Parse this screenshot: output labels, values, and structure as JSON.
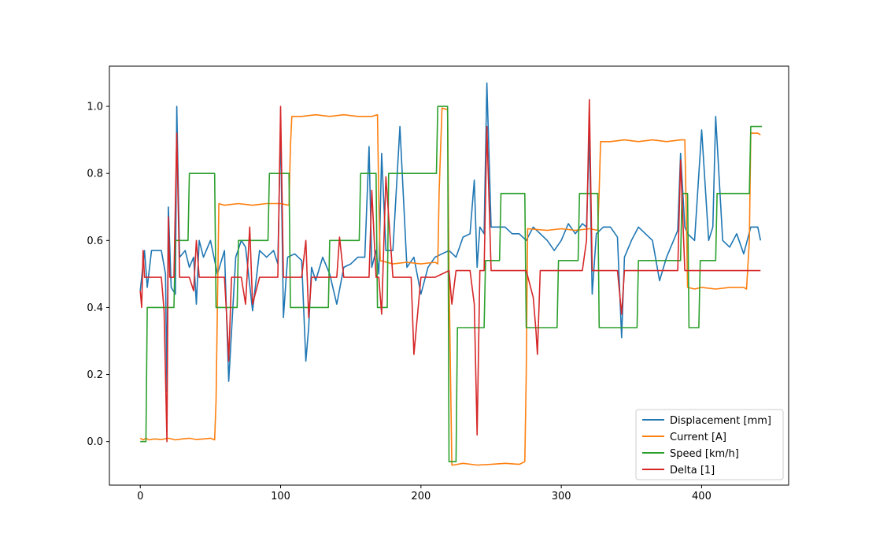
{
  "chart_data": {
    "type": "line",
    "title": "",
    "xlabel": "",
    "ylabel": "",
    "xlim": [
      -22,
      462
    ],
    "ylim": [
      -0.13,
      1.12
    ],
    "xticks": [
      0,
      100,
      200,
      300,
      400
    ],
    "yticks": [
      0.0,
      0.2,
      0.4,
      0.6,
      0.8,
      1.0
    ],
    "xtick_labels": [
      "0",
      "100",
      "200",
      "300",
      "400"
    ],
    "ytick_labels": [
      "0.0",
      "0.2",
      "0.4",
      "0.6",
      "0.8",
      "1.0"
    ],
    "grid": false,
    "legend_position": "bottom-right",
    "series": [
      {
        "name": "Displacement [mm]",
        "color": "#1f77b4",
        "x": [
          0,
          3,
          5,
          8,
          12,
          15,
          18,
          19,
          20,
          22,
          25,
          26,
          28,
          32,
          35,
          38,
          40,
          42,
          45,
          50,
          55,
          60,
          63,
          68,
          72,
          75,
          80,
          85,
          90,
          95,
          98,
          100,
          102,
          105,
          110,
          115,
          118,
          120,
          122,
          125,
          130,
          135,
          140,
          145,
          150,
          155,
          160,
          163,
          165,
          168,
          170,
          172,
          175,
          180,
          185,
          190,
          195,
          200,
          205,
          210,
          215,
          220,
          225,
          230,
          235,
          238,
          240,
          242,
          245,
          247,
          250,
          255,
          260,
          265,
          270,
          275,
          280,
          285,
          290,
          295,
          300,
          305,
          310,
          315,
          318,
          320,
          322,
          325,
          330,
          335,
          340,
          343,
          345,
          350,
          355,
          360,
          365,
          370,
          375,
          380,
          383,
          385,
          388,
          390,
          395,
          400,
          405,
          408,
          410,
          415,
          420,
          425,
          430,
          435,
          440,
          442
        ],
        "values": [
          0.45,
          0.57,
          0.46,
          0.57,
          0.57,
          0.57,
          0.5,
          0.15,
          0.7,
          0.46,
          0.44,
          1.0,
          0.55,
          0.57,
          0.52,
          0.55,
          0.41,
          0.6,
          0.55,
          0.6,
          0.5,
          0.57,
          0.18,
          0.55,
          0.6,
          0.58,
          0.39,
          0.57,
          0.55,
          0.57,
          0.53,
          0.94,
          0.37,
          0.55,
          0.56,
          0.54,
          0.24,
          0.34,
          0.52,
          0.48,
          0.55,
          0.5,
          0.41,
          0.52,
          0.53,
          0.55,
          0.55,
          0.88,
          0.52,
          0.57,
          0.5,
          0.86,
          0.57,
          0.57,
          0.94,
          0.52,
          0.55,
          0.44,
          0.52,
          0.55,
          0.56,
          0.57,
          0.55,
          0.61,
          0.62,
          0.78,
          0.52,
          0.64,
          0.62,
          1.07,
          0.64,
          0.64,
          0.64,
          0.62,
          0.62,
          0.6,
          0.64,
          0.62,
          0.6,
          0.57,
          0.6,
          0.65,
          0.62,
          0.65,
          0.64,
          0.92,
          0.44,
          0.62,
          0.64,
          0.64,
          0.61,
          0.31,
          0.55,
          0.6,
          0.64,
          0.62,
          0.6,
          0.48,
          0.55,
          0.6,
          0.63,
          0.86,
          0.64,
          0.62,
          0.6,
          0.93,
          0.6,
          0.64,
          0.97,
          0.6,
          0.58,
          0.62,
          0.56,
          0.64,
          0.64,
          0.6
        ]
      },
      {
        "name": "Current [A]",
        "color": "#ff7f0e",
        "x": [
          0,
          2,
          4,
          6,
          10,
          15,
          20,
          25,
          30,
          35,
          40,
          45,
          50,
          53,
          54,
          56,
          60,
          70,
          80,
          90,
          100,
          106,
          107,
          108,
          115,
          125,
          135,
          145,
          155,
          165,
          169,
          170,
          171,
          180,
          190,
          200,
          210,
          212,
          213,
          215,
          219,
          220,
          222,
          223,
          230,
          240,
          250,
          260,
          270,
          274,
          275,
          276,
          290,
          300,
          310,
          320,
          326,
          327,
          328,
          335,
          345,
          355,
          365,
          375,
          385,
          388,
          389,
          390,
          395,
          400,
          410,
          420,
          430,
          432,
          434,
          435,
          440,
          442
        ],
        "values": [
          0.01,
          0.005,
          0.01,
          0.005,
          0.008,
          0.006,
          0.01,
          0.005,
          0.008,
          0.01,
          0.006,
          0.008,
          0.01,
          0.005,
          0.12,
          0.71,
          0.705,
          0.71,
          0.705,
          0.71,
          0.71,
          0.705,
          0.88,
          0.97,
          0.97,
          0.975,
          0.97,
          0.975,
          0.97,
          0.97,
          0.975,
          0.72,
          0.54,
          0.53,
          0.535,
          0.53,
          0.535,
          0.53,
          0.75,
          0.995,
          0.99,
          0.5,
          -0.07,
          -0.07,
          -0.065,
          -0.07,
          -0.068,
          -0.065,
          -0.068,
          -0.06,
          0.2,
          0.635,
          0.63,
          0.635,
          0.63,
          0.635,
          0.63,
          0.75,
          0.895,
          0.895,
          0.9,
          0.895,
          0.9,
          0.895,
          0.9,
          0.9,
          0.7,
          0.46,
          0.455,
          0.46,
          0.455,
          0.46,
          0.46,
          0.455,
          0.6,
          0.92,
          0.92,
          0.915
        ]
      },
      {
        "name": "Speed [km/h]",
        "color": "#2ca02c",
        "x": [
          0,
          4,
          5,
          24,
          25,
          34,
          35,
          53,
          54,
          69,
          70,
          91,
          92,
          106,
          107,
          134,
          135,
          156,
          157,
          168,
          169,
          176,
          177,
          211,
          212,
          219,
          220,
          225,
          226,
          245,
          246,
          256,
          257,
          274,
          275,
          297,
          298,
          312,
          313,
          326,
          327,
          354,
          355,
          385,
          386,
          390,
          391,
          398,
          399,
          410,
          411,
          434,
          435,
          443
        ],
        "values": [
          0,
          0,
          0.4,
          0.4,
          0.6,
          0.6,
          0.8,
          0.8,
          0.4,
          0.4,
          0.6,
          0.6,
          0.8,
          0.8,
          0.4,
          0.4,
          0.6,
          0.6,
          0.8,
          0.8,
          0.4,
          0.4,
          0.8,
          0.8,
          1.0,
          1.0,
          -0.06,
          -0.06,
          0.34,
          0.34,
          0.54,
          0.54,
          0.74,
          0.74,
          0.34,
          0.34,
          0.54,
          0.54,
          0.74,
          0.74,
          0.34,
          0.34,
          0.54,
          0.54,
          0.74,
          0.74,
          0.34,
          0.34,
          0.54,
          0.54,
          0.74,
          0.74,
          0.94,
          0.94
        ]
      },
      {
        "name": "Delta [1]",
        "color": "#d62728",
        "x": [
          0,
          1,
          2,
          3,
          5,
          8,
          12,
          15,
          17,
          19,
          20,
          21,
          22,
          24,
          26,
          28,
          32,
          35,
          38,
          40,
          42,
          45,
          50,
          55,
          60,
          62,
          63,
          65,
          68,
          72,
          75,
          78,
          80,
          85,
          90,
          95,
          98,
          100,
          102,
          105,
          110,
          115,
          118,
          120,
          122,
          125,
          130,
          135,
          140,
          142,
          145,
          150,
          155,
          160,
          163,
          165,
          168,
          170,
          172,
          175,
          180,
          185,
          190,
          193,
          195,
          200,
          203,
          205,
          210,
          215,
          220,
          222,
          225,
          230,
          235,
          238,
          240,
          242,
          245,
          247,
          250,
          255,
          260,
          265,
          270,
          275,
          280,
          282,
          283,
          285,
          290,
          295,
          300,
          305,
          310,
          315,
          318,
          320,
          322,
          325,
          330,
          335,
          340,
          343,
          345,
          350,
          355,
          360,
          365,
          370,
          375,
          380,
          383,
          385,
          388,
          390,
          395,
          400,
          405,
          408,
          410,
          415,
          420,
          425,
          430,
          435,
          440,
          442
        ],
        "values": [
          0.45,
          0.4,
          0.57,
          0.49,
          0.49,
          0.49,
          0.49,
          0.49,
          0.39,
          0.0,
          0.67,
          0.49,
          0.49,
          0.49,
          0.92,
          0.49,
          0.49,
          0.49,
          0.45,
          0.6,
          0.49,
          0.49,
          0.49,
          0.49,
          0.49,
          0.34,
          0.24,
          0.49,
          0.49,
          0.49,
          0.41,
          0.64,
          0.41,
          0.49,
          0.49,
          0.49,
          0.49,
          1.0,
          0.49,
          0.49,
          0.49,
          0.49,
          0.6,
          0.37,
          0.49,
          0.49,
          0.49,
          0.49,
          0.49,
          0.61,
          0.49,
          0.49,
          0.49,
          0.49,
          0.49,
          0.75,
          0.49,
          0.49,
          0.38,
          0.79,
          0.49,
          0.49,
          0.49,
          0.49,
          0.26,
          0.49,
          0.49,
          0.49,
          0.49,
          0.5,
          0.51,
          0.41,
          0.51,
          0.51,
          0.51,
          0.41,
          0.02,
          0.51,
          0.51,
          0.94,
          0.51,
          0.51,
          0.51,
          0.51,
          0.51,
          0.51,
          0.43,
          0.33,
          0.26,
          0.51,
          0.51,
          0.51,
          0.51,
          0.51,
          0.51,
          0.51,
          0.6,
          1.02,
          0.51,
          0.51,
          0.51,
          0.51,
          0.51,
          0.38,
          0.51,
          0.51,
          0.51,
          0.51,
          0.51,
          0.51,
          0.51,
          0.51,
          0.51,
          0.84,
          0.51,
          0.51,
          0.51,
          0.51,
          0.51,
          0.51,
          0.51,
          0.51,
          0.51,
          0.51,
          0.51,
          0.51,
          0.51,
          0.51
        ]
      }
    ]
  }
}
